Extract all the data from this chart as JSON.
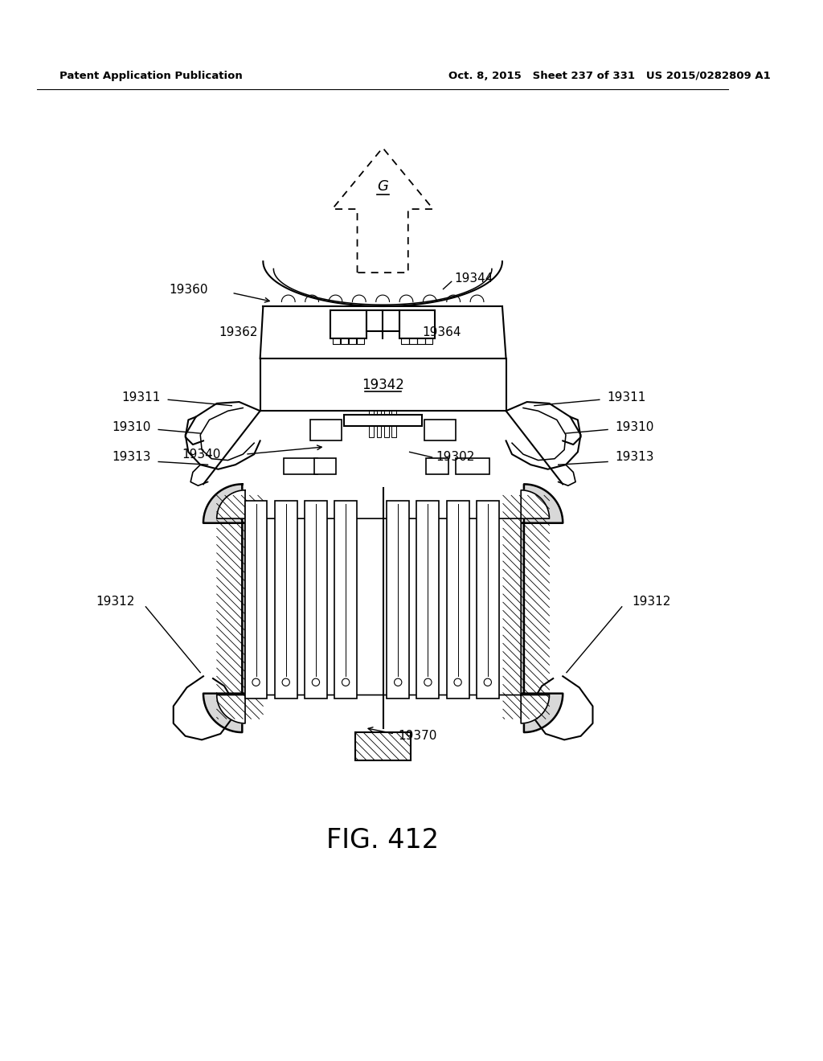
{
  "title": "FIG. 412",
  "header_left": "Patent Application Publication",
  "header_right": "Oct. 8, 2015   Sheet 237 of 331   US 2015/0282809 A1",
  "bg_color": "#ffffff",
  "line_color": "#000000",
  "fig_width": 10.24,
  "fig_height": 13.2,
  "dpi": 100
}
